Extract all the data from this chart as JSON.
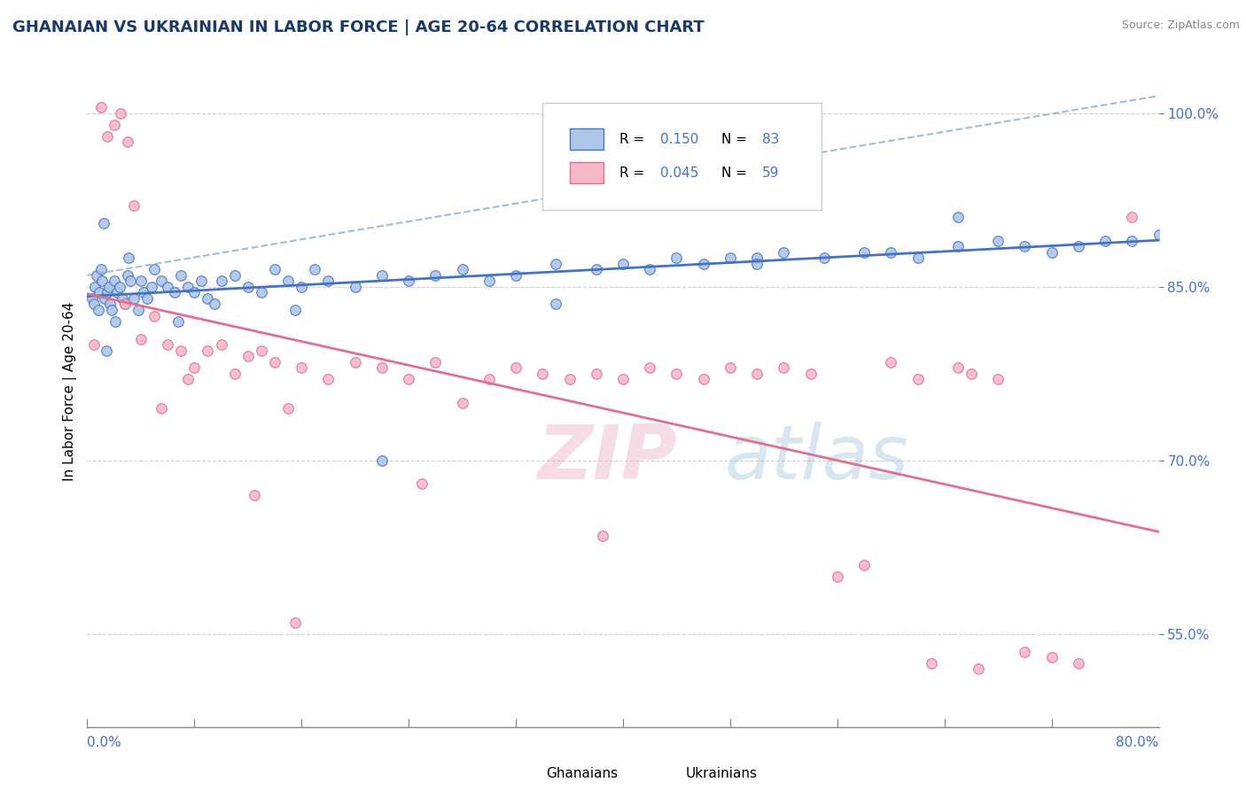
{
  "title": "GHANAIAN VS UKRAINIAN IN LABOR FORCE | AGE 20-64 CORRELATION CHART",
  "source": "Source: ZipAtlas.com",
  "ylabel": "In Labor Force | Age 20-64",
  "y_ticks": [
    55.0,
    70.0,
    85.0,
    100.0
  ],
  "y_tick_labels": [
    "55.0%",
    "70.0%",
    "85.0%",
    "100.0%"
  ],
  "legend_r1": "R = ",
  "legend_r1_val": "0.150",
  "legend_n1": "N = ",
  "legend_n1_val": "83",
  "legend_r2": "R = ",
  "legend_r2_val": "0.045",
  "legend_n2": "N = ",
  "legend_n2_val": "59",
  "color_blue_fill": "#aec6e8",
  "color_blue_edge": "#4472c4",
  "color_pink_fill": "#f4b8c8",
  "color_pink_edge": "#e07090",
  "color_blue_line": "#4472c4",
  "color_pink_line": "#e07090",
  "watermark_zip": "ZIP",
  "watermark_atlas": "atlas",
  "blue_scatter_x": [
    0.4,
    0.5,
    0.6,
    0.7,
    0.8,
    0.9,
    1.0,
    1.1,
    1.2,
    1.3,
    1.5,
    1.6,
    1.7,
    1.8,
    2.0,
    2.2,
    2.4,
    2.6,
    2.8,
    3.0,
    3.2,
    3.5,
    3.8,
    4.0,
    4.2,
    4.5,
    4.8,
    5.0,
    5.5,
    6.0,
    6.5,
    7.0,
    7.5,
    8.0,
    8.5,
    9.0,
    10.0,
    11.0,
    12.0,
    13.0,
    14.0,
    15.0,
    16.0,
    17.0,
    18.0,
    20.0,
    22.0,
    24.0,
    26.0,
    28.0,
    30.0,
    32.0,
    35.0,
    38.0,
    40.0,
    42.0,
    44.0,
    46.0,
    48.0,
    50.0,
    52.0,
    55.0,
    58.0,
    60.0,
    62.0,
    65.0,
    68.0,
    70.0,
    72.0,
    74.0,
    76.0,
    78.0,
    80.0,
    1.4,
    2.1,
    3.1,
    6.8,
    9.5,
    15.5,
    22.0,
    35.0,
    50.0,
    65.0
  ],
  "blue_scatter_y": [
    84.0,
    83.5,
    85.0,
    86.0,
    83.0,
    84.5,
    86.5,
    85.5,
    90.5,
    84.0,
    84.5,
    85.0,
    83.5,
    83.0,
    85.5,
    84.5,
    85.0,
    84.0,
    83.5,
    86.0,
    85.5,
    84.0,
    83.0,
    85.5,
    84.5,
    84.0,
    85.0,
    86.5,
    85.5,
    85.0,
    84.5,
    86.0,
    85.0,
    84.5,
    85.5,
    84.0,
    85.5,
    86.0,
    85.0,
    84.5,
    86.5,
    85.5,
    85.0,
    86.5,
    85.5,
    85.0,
    86.0,
    85.5,
    86.0,
    86.5,
    85.5,
    86.0,
    87.0,
    86.5,
    87.0,
    86.5,
    87.5,
    87.0,
    87.5,
    87.5,
    88.0,
    87.5,
    88.0,
    88.0,
    87.5,
    88.5,
    89.0,
    88.5,
    88.0,
    88.5,
    89.0,
    89.0,
    89.5,
    79.5,
    82.0,
    87.5,
    82.0,
    83.5,
    83.0,
    70.0,
    83.5,
    87.0,
    91.0
  ],
  "pink_scatter_x": [
    0.5,
    1.0,
    1.5,
    2.0,
    2.5,
    3.0,
    3.5,
    4.0,
    5.0,
    6.0,
    7.0,
    8.0,
    9.0,
    10.0,
    11.0,
    12.0,
    13.0,
    14.0,
    15.0,
    16.0,
    18.0,
    20.0,
    22.0,
    24.0,
    26.0,
    28.0,
    30.0,
    32.0,
    34.0,
    36.0,
    38.0,
    40.0,
    42.0,
    44.0,
    46.0,
    48.0,
    50.0,
    52.0,
    54.0,
    56.0,
    58.0,
    60.0,
    62.0,
    65.0,
    66.0,
    68.0,
    70.0,
    72.0,
    74.0,
    78.0,
    2.8,
    5.5,
    7.5,
    12.5,
    15.5,
    25.0,
    38.5,
    63.0,
    66.5
  ],
  "pink_scatter_y": [
    80.0,
    100.5,
    98.0,
    99.0,
    100.0,
    97.5,
    92.0,
    80.5,
    82.5,
    80.0,
    79.5,
    78.0,
    79.5,
    80.0,
    77.5,
    79.0,
    79.5,
    78.5,
    74.5,
    78.0,
    77.0,
    78.5,
    78.0,
    77.0,
    78.5,
    75.0,
    77.0,
    78.0,
    77.5,
    77.0,
    77.5,
    77.0,
    78.0,
    77.5,
    77.0,
    78.0,
    77.5,
    78.0,
    77.5,
    60.0,
    61.0,
    78.5,
    77.0,
    78.0,
    77.5,
    77.0,
    53.5,
    53.0,
    52.5,
    91.0,
    83.5,
    74.5,
    77.0,
    67.0,
    56.0,
    68.0,
    63.5,
    52.5,
    52.0
  ]
}
